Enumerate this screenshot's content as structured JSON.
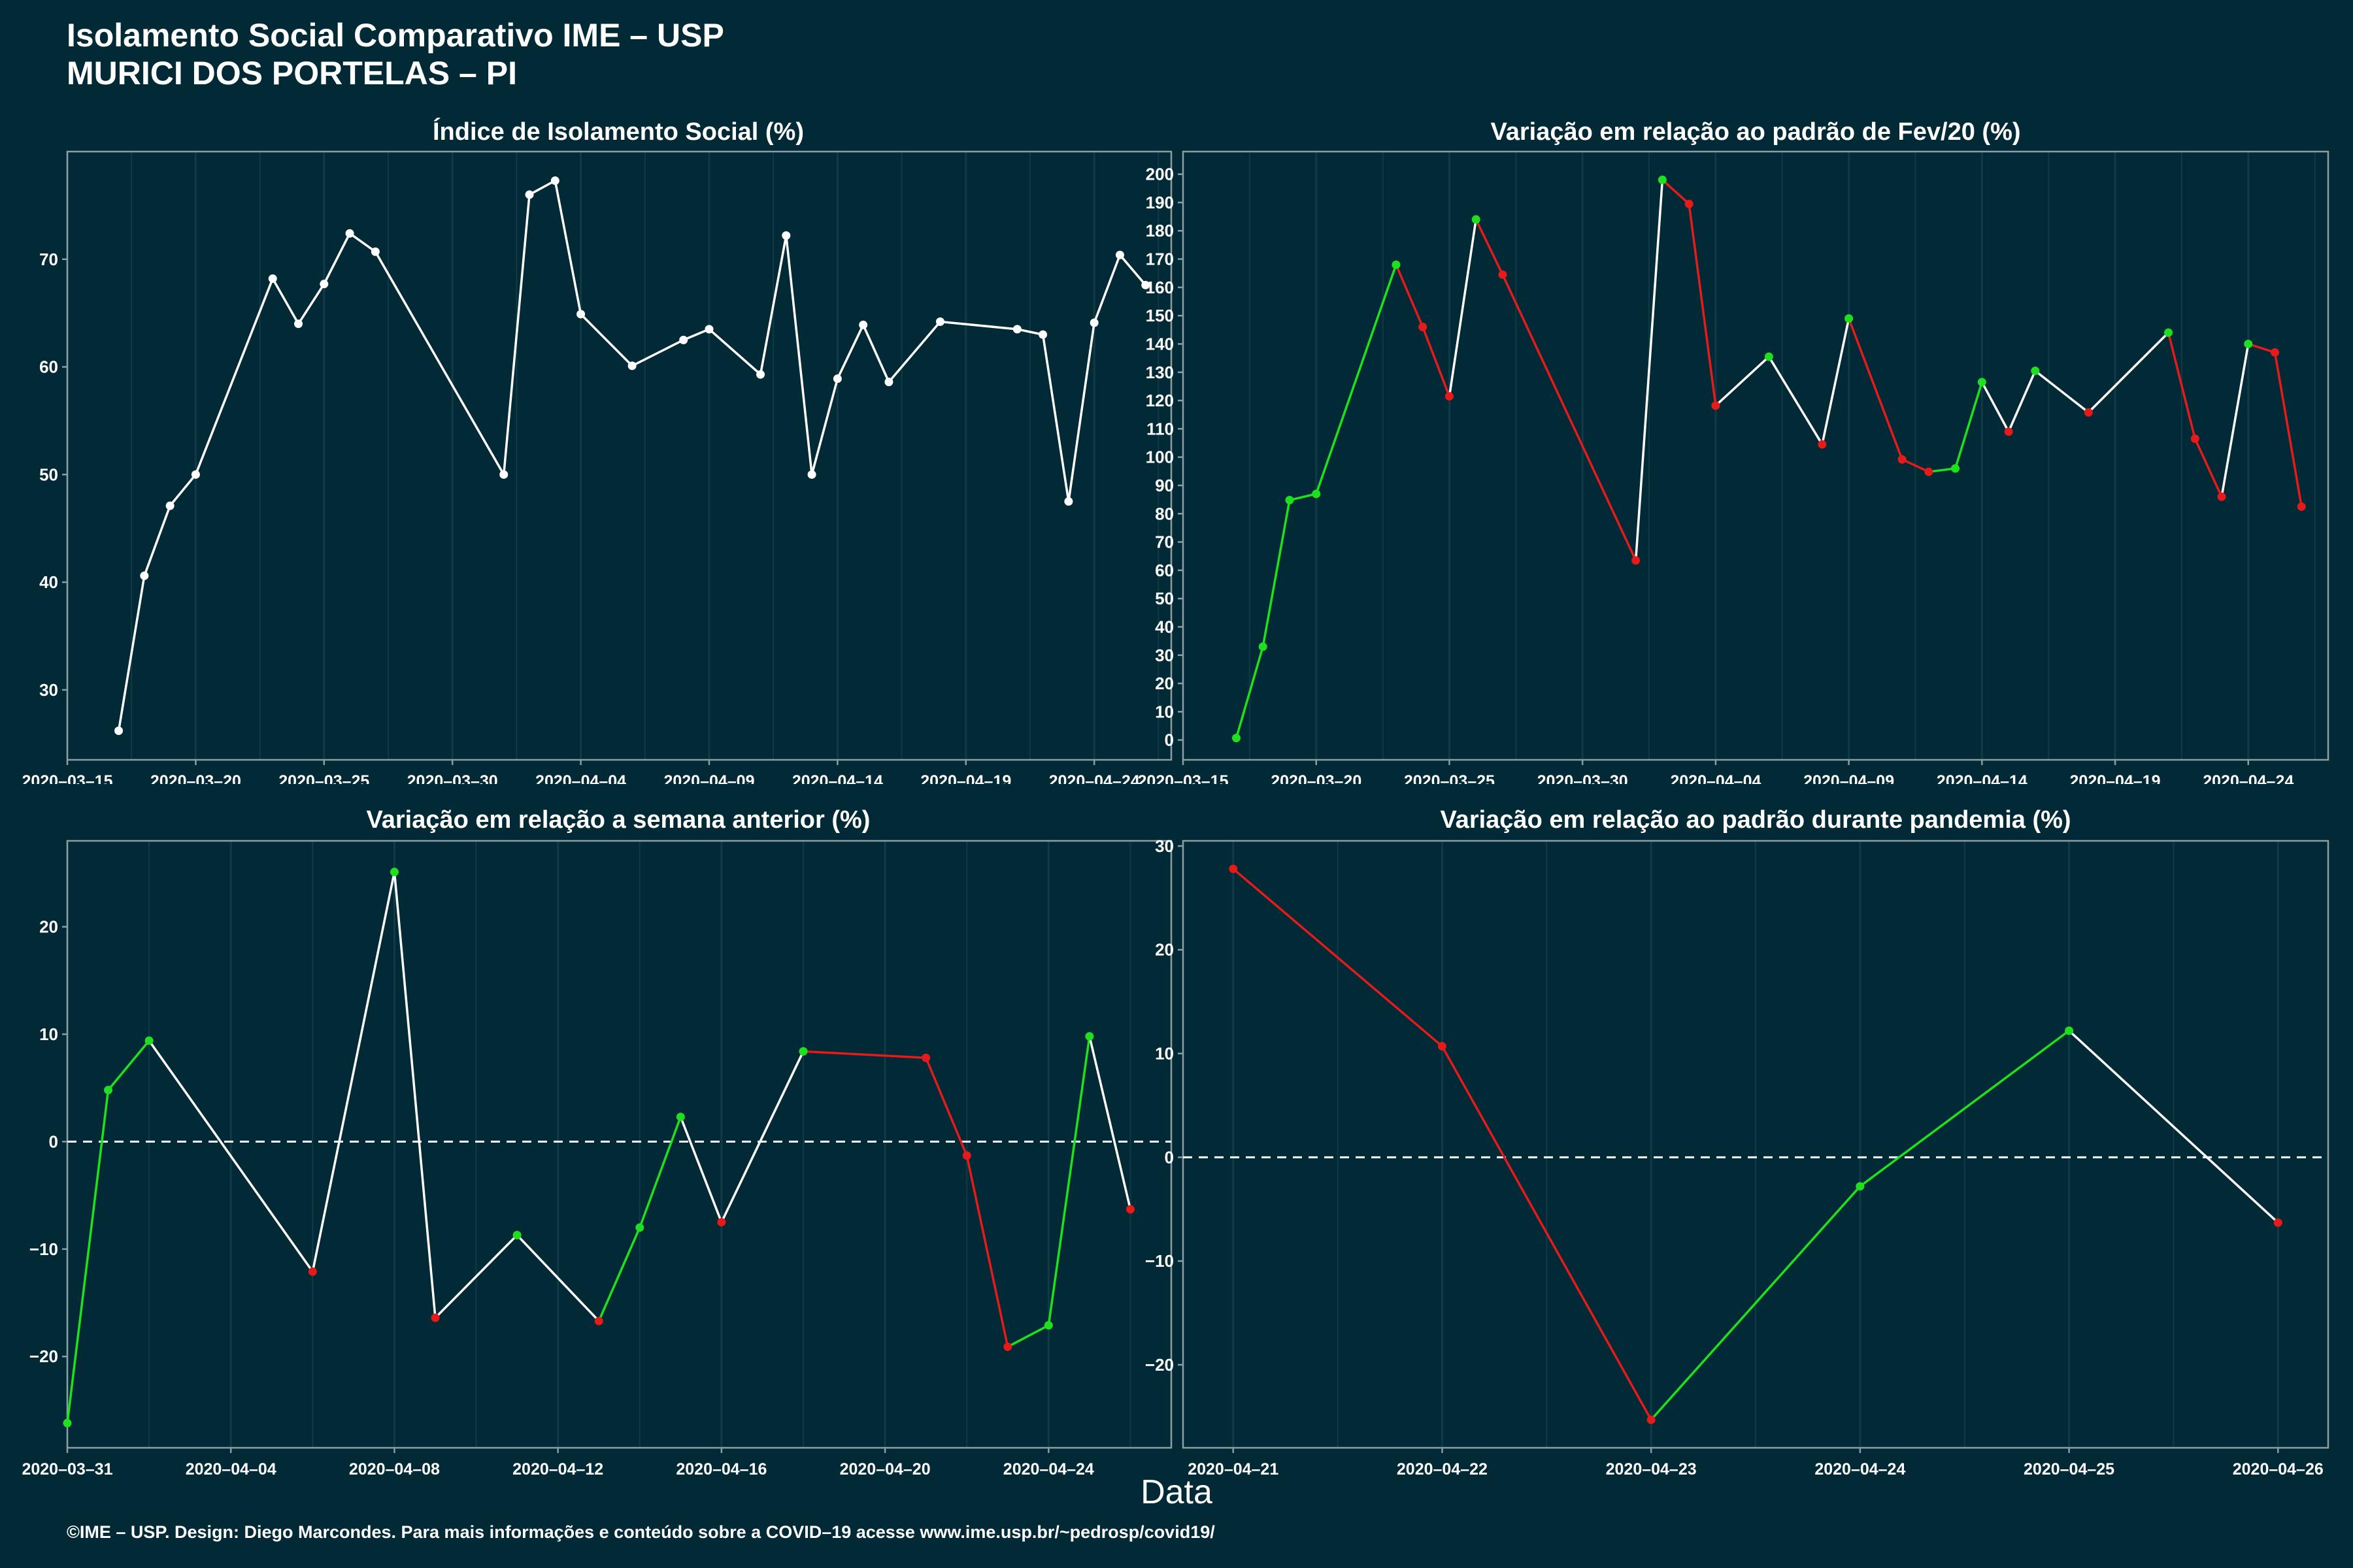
{
  "header": {
    "title": "Isolamento Social Comparativo IME – USP",
    "subtitle": "MURICI DOS PORTELAS – PI"
  },
  "x_axis_label": "Data",
  "footer": "©IME – USP. Design: Diego Marcondes. Para mais informações e conteúdo sobre a COVID–19 acesse www.ime.usp.br/~pedrosp/covid19/",
  "colors": {
    "background": "#022a36",
    "line": "#ffffff",
    "up": "#1fe01f",
    "down": "#e51a1a",
    "grid": "#0f3b47",
    "axis": "#8a9ea4"
  },
  "chart_data": [
    {
      "id": "p1",
      "type": "line",
      "title": "Índice de Isolamento Social (%)",
      "xlim": [
        "2020-03-15",
        "2020-04-27"
      ],
      "ylim": [
        23.5,
        80
      ],
      "yticks": [
        30,
        40,
        50,
        60,
        70
      ],
      "xticks": [
        "2020-03-15",
        "2020-03-20",
        "2020-03-25",
        "2020-03-30",
        "2020-04-04",
        "2020-04-09",
        "2020-04-14",
        "2020-04-19",
        "2020-04-24"
      ],
      "color_mode": "white",
      "x": [
        "2020-03-17",
        "2020-03-18",
        "2020-03-19",
        "2020-03-20",
        "2020-03-23",
        "2020-03-24",
        "2020-03-25",
        "2020-03-26",
        "2020-03-27",
        "2020-04-01",
        "2020-04-02",
        "2020-04-03",
        "2020-04-04",
        "2020-04-06",
        "2020-04-08",
        "2020-04-09",
        "2020-04-11",
        "2020-04-12",
        "2020-04-13",
        "2020-04-14",
        "2020-04-15",
        "2020-04-16",
        "2020-04-18",
        "2020-04-21",
        "2020-04-22",
        "2020-04-23",
        "2020-04-24",
        "2020-04-25",
        "2020-04-26"
      ],
      "y": [
        26.2,
        40.6,
        47.1,
        50.0,
        68.2,
        64.0,
        67.7,
        72.4,
        70.7,
        50.0,
        76.0,
        77.3,
        64.9,
        60.1,
        62.5,
        63.5,
        59.3,
        72.2,
        50.0,
        58.9,
        63.9,
        58.6,
        64.2,
        63.5,
        63.0,
        47.5,
        64.1,
        70.4,
        67.6
      ]
    },
    {
      "id": "p2",
      "type": "line",
      "title": "Variação em relação ao padrão de Fev/20 (%)",
      "xlim": [
        "2020-03-15",
        "2020-04-27"
      ],
      "ylim": [
        -7,
        208
      ],
      "yticks": [
        0,
        10,
        20,
        30,
        40,
        50,
        60,
        70,
        80,
        90,
        100,
        110,
        120,
        130,
        140,
        150,
        160,
        170,
        180,
        190,
        200
      ],
      "xticks": [
        "2020-03-15",
        "2020-03-20",
        "2020-03-25",
        "2020-03-30",
        "2020-04-04",
        "2020-04-09",
        "2020-04-14",
        "2020-04-19",
        "2020-04-24"
      ],
      "color_mode": "trend",
      "x": [
        "2020-03-17",
        "2020-03-18",
        "2020-03-19",
        "2020-03-20",
        "2020-03-23",
        "2020-03-24",
        "2020-03-25",
        "2020-03-26",
        "2020-03-27",
        "2020-04-01",
        "2020-04-02",
        "2020-04-03",
        "2020-04-04",
        "2020-04-06",
        "2020-04-08",
        "2020-04-09",
        "2020-04-11",
        "2020-04-12",
        "2020-04-13",
        "2020-04-14",
        "2020-04-15",
        "2020-04-16",
        "2020-04-18",
        "2020-04-21",
        "2020-04-22",
        "2020-04-23",
        "2020-04-24",
        "2020-04-25",
        "2020-04-26"
      ],
      "y": [
        0.7,
        33.0,
        84.8,
        87.0,
        168.0,
        146.0,
        121.5,
        184.0,
        164.5,
        63.5,
        198.0,
        189.5,
        118.2,
        135.5,
        104.5,
        149.0,
        99.2,
        94.8,
        96.0,
        126.5,
        109.0,
        130.5,
        115.8,
        144.0,
        106.5,
        86.0,
        140.0,
        137.0,
        82.5
      ]
    },
    {
      "id": "p3",
      "type": "line",
      "title": "Variação em relação a semana anterior (%)",
      "xlim": [
        "2020-03-31",
        "2020-04-27"
      ],
      "ylim": [
        -28.5,
        28
      ],
      "yticks": [
        -20,
        -10,
        0,
        10,
        20
      ],
      "xticks": [
        "2020-03-31",
        "2020-04-04",
        "2020-04-08",
        "2020-04-12",
        "2020-04-16",
        "2020-04-20",
        "2020-04-24"
      ],
      "zero_line": true,
      "color_mode": "trend",
      "x": [
        "2020-03-31",
        "2020-04-01",
        "2020-04-02",
        "2020-04-06",
        "2020-04-08",
        "2020-04-09",
        "2020-04-11",
        "2020-04-13",
        "2020-04-14",
        "2020-04-15",
        "2020-04-16",
        "2020-04-18",
        "2020-04-21",
        "2020-04-22",
        "2020-04-23",
        "2020-04-24",
        "2020-04-25",
        "2020-04-26"
      ],
      "y": [
        -26.2,
        4.8,
        9.4,
        -12.1,
        25.1,
        -16.4,
        -8.7,
        -16.7,
        -8.0,
        2.3,
        -7.5,
        8.4,
        7.8,
        -1.3,
        -19.1,
        -17.1,
        9.8,
        -6.3
      ]
    },
    {
      "id": "p4",
      "type": "line",
      "title": "Variação em relação ao padrão durante pandemia (%)",
      "xlim": [
        "2020-04-20.76",
        "2020-04-26.24"
      ],
      "ylim": [
        -28,
        30.5
      ],
      "yticks": [
        -20,
        -10,
        0,
        10,
        20,
        30
      ],
      "xticks": [
        "2020-04-21",
        "2020-04-22",
        "2020-04-23",
        "2020-04-24",
        "2020-04-25",
        "2020-04-26"
      ],
      "zero_line": true,
      "color_mode": "trend",
      "x": [
        "2020-04-21",
        "2020-04-22",
        "2020-04-23",
        "2020-04-24",
        "2020-04-25",
        "2020-04-26"
      ],
      "y": [
        27.8,
        10.7,
        -25.3,
        -2.8,
        12.2,
        -6.3
      ]
    }
  ]
}
